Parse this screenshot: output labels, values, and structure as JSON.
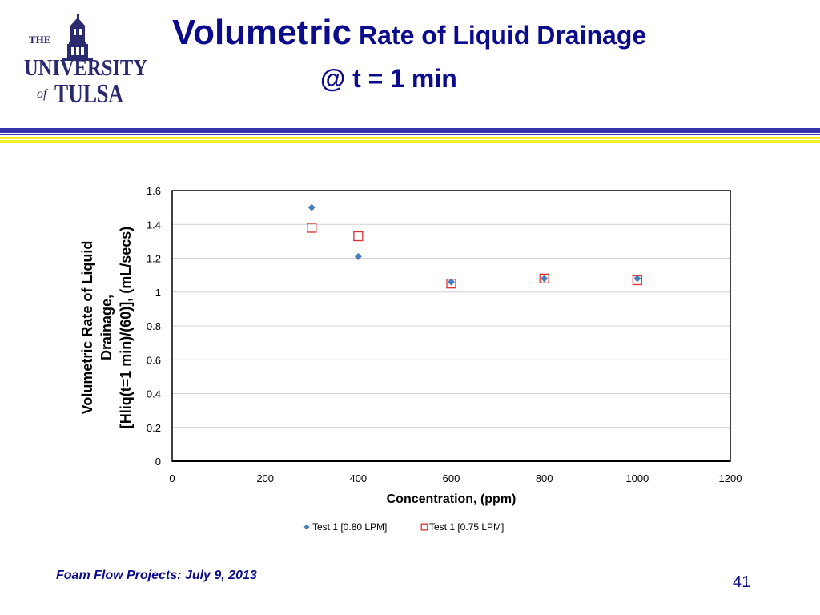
{
  "logo": {
    "line1": "THE",
    "line2": "UNIVERSITY",
    "line3_of": "of",
    "line3_name": "TULSA"
  },
  "title": {
    "big": "Volumetric",
    "rest": " Rate of Liquid Drainage",
    "line2": "@ t = 1 min"
  },
  "colors": {
    "title": "#0b0b8c",
    "band_blue": "#3333aa",
    "band_yellow": "#f5ee2a",
    "series1": "#4a7ebb",
    "series2": "#e03030"
  },
  "chart_data": {
    "type": "scatter",
    "xlabel": "Concentration, (ppm)",
    "ylabel_lines": [
      "Volumetric Rate of Liquid",
      "Drainage,",
      "[Hliq(t=1 min)/(60)],  (mL/secs)"
    ],
    "xlim": [
      0,
      1200
    ],
    "ylim": [
      0,
      1.6
    ],
    "xticks": [
      0,
      200,
      400,
      600,
      800,
      1000,
      1200
    ],
    "yticks": [
      0,
      0.2,
      0.4,
      0.6,
      0.8,
      1,
      1.2,
      1.4,
      1.6
    ],
    "ytick_labels": [
      "0",
      "0.2",
      "0.4",
      "0.6",
      "0.8",
      "1",
      "1.2",
      "1.4",
      "1.6"
    ],
    "grid": "horizontal",
    "legend_position": "bottom",
    "series": [
      {
        "name": "Test 1 [0.80 LPM]",
        "marker": "diamond",
        "x": [
          300,
          400,
          600,
          800,
          1000
        ],
        "y": [
          1.5,
          1.21,
          1.06,
          1.08,
          1.08
        ]
      },
      {
        "name": "Test 1 [0.75 LPM]",
        "marker": "square-open",
        "x": [
          300,
          400,
          600,
          800,
          1000
        ],
        "y": [
          1.38,
          1.33,
          1.05,
          1.08,
          1.07
        ]
      }
    ]
  },
  "footer": {
    "text": "Foam Flow Projects: July 9, 2013",
    "page": "41"
  }
}
